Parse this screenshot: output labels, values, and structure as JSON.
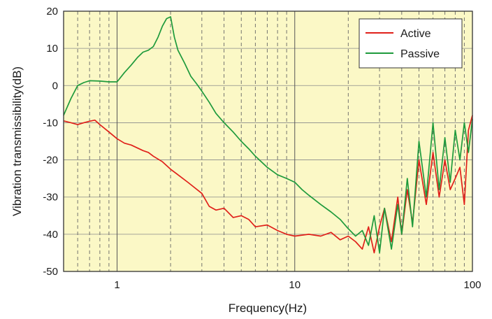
{
  "chart_data": {
    "type": "line",
    "title": "",
    "xlabel": "Frequency(Hz)",
    "ylabel": "Vibration transmissibility(dB)",
    "xscale": "log",
    "xlim": [
      0.5,
      100
    ],
    "ylim": [
      -50,
      20
    ],
    "x_ticks": [
      1,
      10,
      100
    ],
    "x_tick_labels": [
      "1",
      "10",
      "100"
    ],
    "y_ticks": [
      20,
      10,
      0,
      -10,
      -20,
      -30,
      -40,
      -50
    ],
    "y_tick_labels": [
      "20",
      "10",
      "0",
      "-10",
      "-20",
      "-30",
      "-40",
      "-50"
    ],
    "grid": "vertical dashed at log decades, horizontal solid",
    "legend_position": "top-right",
    "background_color": "#fbf8c6",
    "series": [
      {
        "name": "Active",
        "color": "#e0201a",
        "x": [
          0.5,
          0.55,
          0.6,
          0.65,
          0.7,
          0.75,
          0.8,
          0.9,
          1.0,
          1.1,
          1.2,
          1.4,
          1.5,
          1.6,
          1.8,
          2.0,
          2.2,
          2.5,
          3.0,
          3.3,
          3.6,
          4.0,
          4.5,
          5.0,
          5.5,
          6.0,
          7.0,
          8.0,
          9.0,
          10,
          12,
          14,
          16,
          18,
          20,
          22,
          24,
          26,
          28,
          30,
          32,
          35,
          38,
          40,
          43,
          46,
          50,
          55,
          60,
          65,
          70,
          75,
          80,
          85,
          90,
          95,
          100
        ],
        "values": [
          -9.5,
          -10.0,
          -10.5,
          -10.0,
          -9.6,
          -9.3,
          -10.5,
          -12.5,
          -14.3,
          -15.5,
          -16.0,
          -17.5,
          -18.0,
          -19.0,
          -20.5,
          -22.5,
          -24.0,
          -26.0,
          -29.0,
          -32.5,
          -33.5,
          -33.0,
          -35.5,
          -35.0,
          -36.0,
          -38.0,
          -37.5,
          -39.0,
          -40.0,
          -40.5,
          -40.0,
          -40.5,
          -39.5,
          -41.5,
          -40.5,
          -42.0,
          -44.0,
          -38.0,
          -45.0,
          -38.0,
          -33.0,
          -42.0,
          -30.0,
          -40.0,
          -28.0,
          -37.0,
          -20.0,
          -32.0,
          -18.0,
          -30.0,
          -20.0,
          -28.0,
          -25.0,
          -22.0,
          -32.0,
          -12.0,
          -8.0
        ]
      },
      {
        "name": "Passive",
        "color": "#1e9a3c",
        "x": [
          0.5,
          0.55,
          0.6,
          0.65,
          0.7,
          0.8,
          0.9,
          1.0,
          1.1,
          1.2,
          1.3,
          1.4,
          1.5,
          1.6,
          1.7,
          1.8,
          1.9,
          2.0,
          2.1,
          2.2,
          2.4,
          2.6,
          2.8,
          3.0,
          3.3,
          3.6,
          4.0,
          4.5,
          5.0,
          5.5,
          6.0,
          7.0,
          8.0,
          9.0,
          10,
          11,
          12,
          14,
          16,
          18,
          20,
          22,
          24,
          26,
          28,
          30,
          32,
          35,
          38,
          40,
          43,
          46,
          50,
          55,
          60,
          65,
          70,
          75,
          80,
          85,
          90,
          95,
          100
        ],
        "values": [
          -8.0,
          -3.5,
          0.0,
          0.8,
          1.3,
          1.2,
          1.0,
          1.0,
          3.5,
          5.5,
          7.5,
          9.0,
          9.5,
          10.5,
          13.0,
          16.0,
          18.0,
          18.5,
          13.0,
          9.5,
          6.0,
          2.5,
          0.5,
          -1.5,
          -4.5,
          -7.5,
          -10.0,
          -12.5,
          -15.0,
          -17.0,
          -19.0,
          -22.0,
          -24.0,
          -25.0,
          -26.0,
          -28.0,
          -29.5,
          -32.0,
          -34.0,
          -36.0,
          -38.5,
          -40.5,
          -39.0,
          -43.0,
          -35.0,
          -45.0,
          -33.0,
          -44.0,
          -32.0,
          -40.0,
          -25.0,
          -38.0,
          -15.0,
          -30.0,
          -10.0,
          -28.0,
          -14.0,
          -26.0,
          -12.0,
          -20.0,
          -10.0,
          -18.0,
          -9.0
        ]
      }
    ]
  }
}
